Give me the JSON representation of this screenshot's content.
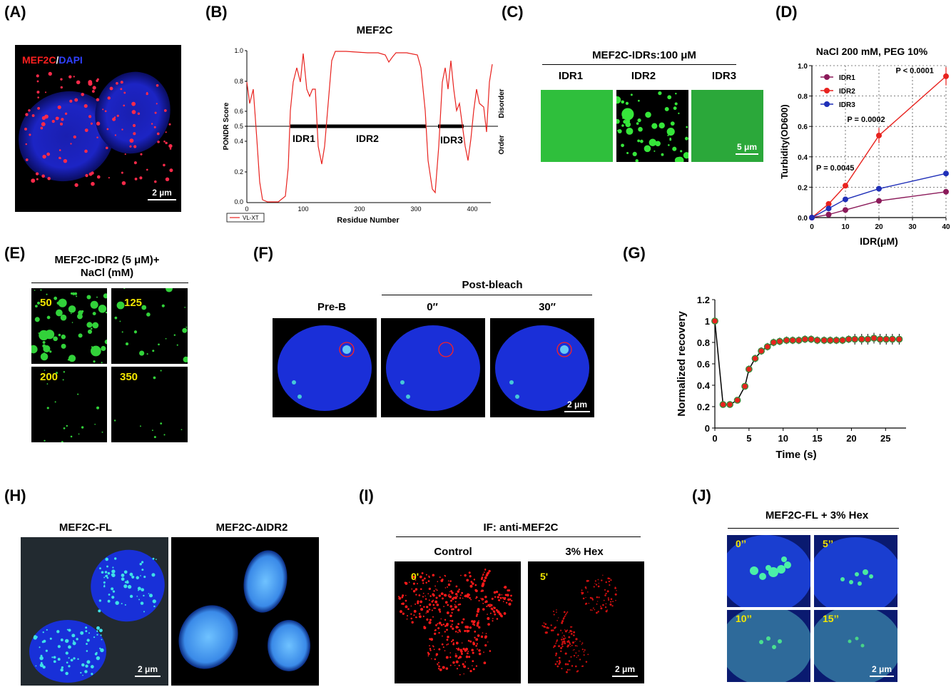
{
  "panels": {
    "A": {
      "label": "(A)",
      "legend_red": "MEF2C",
      "legend_sep": "/",
      "legend_blue": "DAPI",
      "scale": "2 µm"
    },
    "B": {
      "label": "(B)",
      "title": "MEF2C",
      "ylabel": "PONDR Score",
      "xlabel": "Residue Number",
      "right_top": "Disorder",
      "right_bottom": "Order",
      "legend": "VL-XT",
      "regions": [
        "IDR1",
        "IDR2",
        "IDR3"
      ],
      "yticks": [
        "1.0",
        "0.8",
        "0.6",
        "0.5",
        "0.4",
        "0.2",
        "0.0"
      ],
      "xticks": [
        "0",
        "100",
        "200",
        "300",
        "400"
      ]
    },
    "C": {
      "label": "(C)",
      "title": "MEF2C-IDRs:100 μM",
      "columns": [
        "IDR1",
        "IDR2",
        "IDR3"
      ],
      "scale": "5 μm"
    },
    "D": {
      "label": "(D)",
      "title": "NaCl 200 mM, PEG 10%"
    },
    "E": {
      "label": "(E)",
      "title_line1": "MEF2C-IDR2 (5 μM)+",
      "title_line2": "NaCl (mM)",
      "conditions": [
        "50",
        "125",
        "200",
        "350"
      ]
    },
    "F": {
      "label": "(F)",
      "header": "Post-bleach",
      "columns": [
        "Pre-B",
        "0″",
        "30″"
      ],
      "scale": "2 μm"
    },
    "G": {
      "label": "(G)"
    },
    "H": {
      "label": "(H)",
      "columns": [
        "MEF2C-FL",
        "MEF2C-ΔIDR2"
      ],
      "scale": "2 μm"
    },
    "I": {
      "label": "(I)",
      "header": "IF: anti-MEF2C",
      "columns": [
        "Control",
        "3% Hex"
      ],
      "times": [
        "0'",
        "5'"
      ],
      "scale": "2 μm"
    },
    "J": {
      "label": "(J)",
      "header": "MEF2C-FL + 3% Hex",
      "times": [
        "0’’",
        "5’’",
        "10’’",
        "15’’"
      ],
      "scale": "2 μm"
    }
  },
  "chart_data": [
    {
      "panel": "D",
      "type": "line",
      "title": "NaCl 200 mM, PEG 10%",
      "xlabel": "IDR(μM)",
      "ylabel": "Turbidity(OD600)",
      "x": [
        0,
        5,
        10,
        20,
        40
      ],
      "xlim": [
        0,
        40
      ],
      "ylim": [
        0,
        1.0
      ],
      "xticks": [
        0,
        10,
        20,
        30,
        40
      ],
      "yticks": [
        0.0,
        0.2,
        0.4,
        0.6,
        0.8,
        1.0
      ],
      "grid": "dotted",
      "legend": "top-left",
      "series": [
        {
          "name": "IDR1",
          "color": "#8b1a5a",
          "values": [
            0.0,
            0.02,
            0.05,
            0.11,
            0.17
          ]
        },
        {
          "name": "IDR2",
          "color": "#e8221e",
          "values": [
            0.0,
            0.09,
            0.21,
            0.54,
            0.93
          ]
        },
        {
          "name": "IDR3",
          "color": "#1f2fb8",
          "values": [
            0.0,
            0.06,
            0.12,
            0.19,
            0.29
          ]
        }
      ],
      "annotations": [
        "P = 0.0045",
        "P = 0.0002",
        "P < 0.0001"
      ]
    },
    {
      "panel": "G",
      "type": "line",
      "xlabel": "Time (s)",
      "ylabel": "Normalized recovery",
      "xlim": [
        0,
        28
      ],
      "ylim": [
        0,
        1.2
      ],
      "xticks": [
        0,
        5,
        10,
        15,
        20,
        25
      ],
      "yticks": [
        0,
        0.2,
        0.4,
        0.6,
        0.8,
        1.0,
        1.2
      ],
      "series": [
        {
          "name": "",
          "color": "#e8221e",
          "x": [
            0,
            1.2,
            2.2,
            3.3,
            4.4,
            5.0,
            5.9,
            6.8,
            7.7,
            8.6,
            9.5,
            10.5,
            11.4,
            12.3,
            13.2,
            14.1,
            15.0,
            16.0,
            16.9,
            17.8,
            18.7,
            19.6,
            20.5,
            21.5,
            22.4,
            23.3,
            24.2,
            25.1,
            26.0,
            27.0
          ],
          "values": [
            1.0,
            0.22,
            0.22,
            0.26,
            0.39,
            0.55,
            0.65,
            0.72,
            0.76,
            0.8,
            0.81,
            0.82,
            0.82,
            0.82,
            0.83,
            0.83,
            0.82,
            0.82,
            0.82,
            0.82,
            0.82,
            0.83,
            0.83,
            0.83,
            0.83,
            0.84,
            0.83,
            0.83,
            0.83,
            0.83
          ]
        }
      ]
    }
  ]
}
